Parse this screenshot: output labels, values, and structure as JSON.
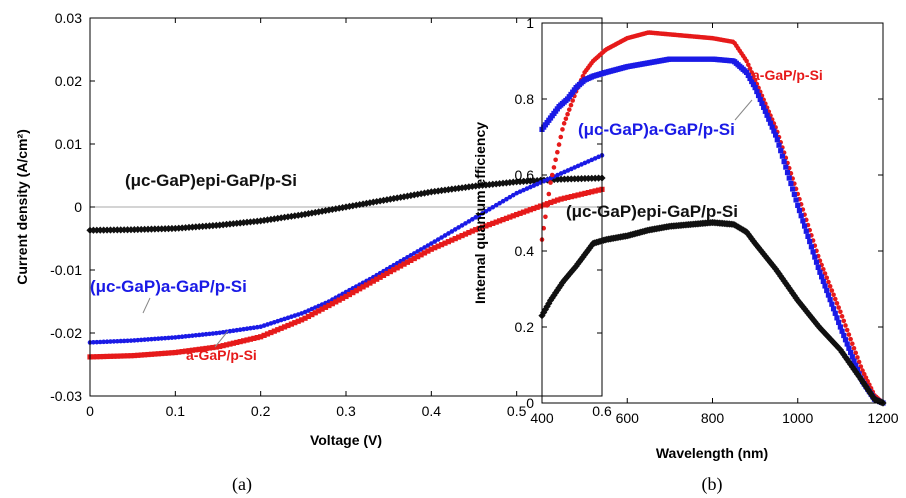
{
  "colors": {
    "black": "#111111",
    "blue": "#1a1ae6",
    "red": "#e61a1a"
  },
  "chart_data": [
    {
      "type": "scatter",
      "caption": "(a)",
      "xlabel": "Voltage (V)",
      "ylabel": "Current density (A/cm²)",
      "xlim": [
        0,
        0.6
      ],
      "ylim": [
        -0.03,
        0.03
      ],
      "xticks": [
        "0",
        "0.1",
        "0.2",
        "0.3",
        "0.4",
        "0.5",
        "0.6"
      ],
      "yticks": [
        "-0.03",
        "-0.02",
        "-0.01",
        "0",
        "0.01",
        "0.02",
        "0.03"
      ],
      "zero_line": true,
      "grid": false,
      "series": [
        {
          "name": "(μc-GaP)epi-GaP/p-Si",
          "color": "#111111",
          "marker": "diamond",
          "x": [
            0,
            0.05,
            0.1,
            0.15,
            0.2,
            0.25,
            0.3,
            0.35,
            0.4,
            0.45,
            0.5,
            0.55,
            0.6
          ],
          "y": [
            -0.0037,
            -0.0036,
            -0.0034,
            -0.0029,
            -0.0022,
            -0.0012,
            0.0,
            0.0012,
            0.0024,
            0.0033,
            0.004,
            0.0044,
            0.0046
          ]
        },
        {
          "name": "(μc-GaP)a-GaP/p-Si",
          "color": "#1a1ae6",
          "marker": "circle",
          "x": [
            0,
            0.05,
            0.1,
            0.15,
            0.2,
            0.25,
            0.28,
            0.3,
            0.33,
            0.35,
            0.4,
            0.45,
            0.5,
            0.55,
            0.6
          ],
          "y": [
            -0.0215,
            -0.0212,
            -0.0207,
            -0.02,
            -0.019,
            -0.0168,
            -0.015,
            -0.0135,
            -0.0113,
            -0.0097,
            -0.0058,
            -0.0018,
            0.0022,
            0.0052,
            0.0082
          ]
        },
        {
          "name": "a-GaP/p-Si",
          "color": "#e61a1a",
          "marker": "square",
          "x": [
            0,
            0.05,
            0.1,
            0.15,
            0.2,
            0.25,
            0.3,
            0.35,
            0.4,
            0.45,
            0.5,
            0.55,
            0.6
          ],
          "y": [
            -0.0238,
            -0.0236,
            -0.0231,
            -0.0222,
            -0.0206,
            -0.0178,
            -0.0142,
            -0.0104,
            -0.0067,
            -0.0037,
            -0.0012,
            0.0012,
            0.0028
          ]
        }
      ]
    },
    {
      "type": "scatter",
      "caption": "(b)",
      "xlabel": "Wavelength (nm)",
      "ylabel": "Internal quantum efficiency",
      "xlim": [
        400,
        1200
      ],
      "ylim": [
        0,
        1
      ],
      "xticks": [
        "400",
        "600",
        "800",
        "1000",
        "1200"
      ],
      "yticks": [
        "0",
        "0.2",
        "0.4",
        "0.6",
        "0.8",
        "1"
      ],
      "grid": false,
      "series": [
        {
          "name": "a-GaP/p-Si",
          "color": "#e61a1a",
          "marker": "circle",
          "x": [
            400,
            420,
            450,
            480,
            500,
            520,
            550,
            600,
            650,
            700,
            750,
            800,
            850,
            880,
            900,
            950,
            1000,
            1050,
            1100,
            1150,
            1180,
            1200
          ],
          "y": [
            0.43,
            0.58,
            0.73,
            0.82,
            0.87,
            0.9,
            0.93,
            0.96,
            0.975,
            0.97,
            0.965,
            0.96,
            0.95,
            0.9,
            0.85,
            0.72,
            0.55,
            0.38,
            0.24,
            0.09,
            0.02,
            0.0
          ]
        },
        {
          "name": "(μc-GaP)a-GaP/p-Si",
          "color": "#1a1ae6",
          "marker": "square",
          "x": [
            400,
            420,
            440,
            460,
            480,
            500,
            520,
            550,
            600,
            650,
            700,
            750,
            800,
            850,
            880,
            900,
            950,
            1000,
            1050,
            1100,
            1150,
            1180,
            1200
          ],
          "y": [
            0.72,
            0.75,
            0.78,
            0.8,
            0.83,
            0.85,
            0.86,
            0.87,
            0.885,
            0.895,
            0.905,
            0.905,
            0.905,
            0.9,
            0.87,
            0.83,
            0.7,
            0.52,
            0.35,
            0.2,
            0.06,
            0.01,
            0.0
          ]
        },
        {
          "name": "(μc-GaP)epi-GaP/p-Si",
          "color": "#111111",
          "marker": "diamond",
          "x": [
            400,
            420,
            450,
            480,
            500,
            520,
            550,
            600,
            650,
            700,
            750,
            800,
            850,
            880,
            900,
            950,
            1000,
            1050,
            1100,
            1150,
            1180,
            1200
          ],
          "y": [
            0.23,
            0.27,
            0.32,
            0.36,
            0.39,
            0.42,
            0.43,
            0.44,
            0.455,
            0.465,
            0.47,
            0.475,
            0.47,
            0.45,
            0.42,
            0.35,
            0.27,
            0.2,
            0.14,
            0.06,
            0.01,
            0.0
          ]
        }
      ]
    }
  ]
}
